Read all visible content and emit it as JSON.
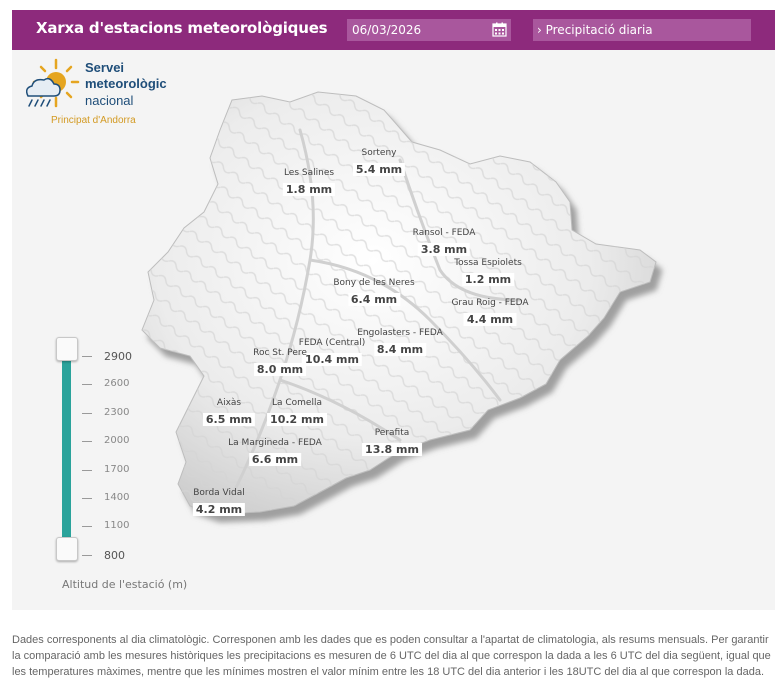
{
  "header": {
    "title": "Xarxa d'estacions meteorològiques",
    "date_value": "06/03/2026",
    "dataset_label": "› Precipitació diaria"
  },
  "logo": {
    "line1": "Servei",
    "line2": "meteorològic",
    "line3": "nacional",
    "line4": "Principat d'Andorra"
  },
  "stations": [
    {
      "name": "Sorteny",
      "value": "5.4 mm"
    },
    {
      "name": "Les Salines",
      "value": "1.8 mm"
    },
    {
      "name": "Ransol - FEDA",
      "value": "3.8 mm"
    },
    {
      "name": "Tossa Espiolets",
      "value": "1.2 mm"
    },
    {
      "name": "Bony de les Neres",
      "value": "6.4 mm"
    },
    {
      "name": "Grau Roig - FEDA",
      "value": "4.4 mm"
    },
    {
      "name": "Engolasters - FEDA",
      "value": "8.4 mm"
    },
    {
      "name": "FEDA (Central)",
      "value": "10.4 mm"
    },
    {
      "name": "Roc St. Pere",
      "value": "8.0 mm"
    },
    {
      "name": "Aixàs",
      "value": "6.5 mm"
    },
    {
      "name": "La Comella",
      "value": "10.2 mm"
    },
    {
      "name": "La Margineda - FEDA",
      "value": "6.6 mm"
    },
    {
      "name": "Perafita",
      "value": "13.8 mm"
    },
    {
      "name": "Borda Vidal",
      "value": "4.2 mm"
    }
  ],
  "altitude": {
    "title": "Altitud de l'estació (m)",
    "ticks": [
      "2900",
      "2600",
      "2300",
      "2000",
      "1700",
      "1400",
      "1100",
      "800"
    ],
    "selected_min": 800,
    "selected_max": 2900
  },
  "footer": {
    "text": "Dades corresponents al dia climatològic. Corresponen amb les dades que es poden consultar a l'apartat de climatologia, als resums mensuals. Per garantir la comparació amb les mesures històriques les precipitacions es mesuren de 6 UTC del dia al que correspon la dada a les 6 UTC del dia següent, igual que les temperatures màximes, mentre que les mínimes mostren el valor mínim entre les 18 UTC del dia anterior i les 18UTC del dia al que correspon la dada."
  },
  "colors": {
    "header": "#8d2a7c",
    "input": "#a9579d",
    "slider": "#2aa39b"
  }
}
